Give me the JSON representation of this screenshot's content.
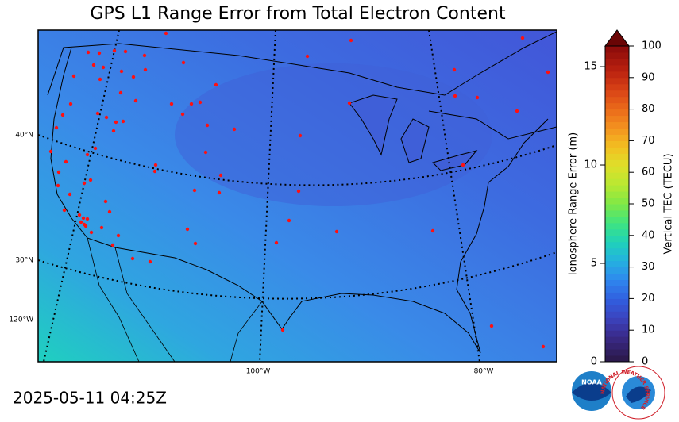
{
  "title": "GPS L1 Range Error from Total Electron Content",
  "map": {
    "edge_labels": [
      "40°N",
      "30°N",
      "120°W",
      "100°W",
      "80°W"
    ]
  },
  "colorbar": {
    "left_label": "Ionosphere Range Error (m)",
    "right_label": "Vertical TEC (TECU)",
    "left_lim": [
      0,
      16.05
    ],
    "left_ticks": [
      0,
      5,
      10,
      15
    ],
    "right_lim": [
      0,
      100
    ],
    "right_ticks": [
      0,
      10,
      20,
      30,
      40,
      50,
      60,
      70,
      80,
      90,
      100
    ]
  },
  "timestamp": "2025-05-11 04:25Z",
  "logos": {
    "noaa": "NOAA",
    "nws": "NATIONAL WEATHER SERVICE"
  }
}
